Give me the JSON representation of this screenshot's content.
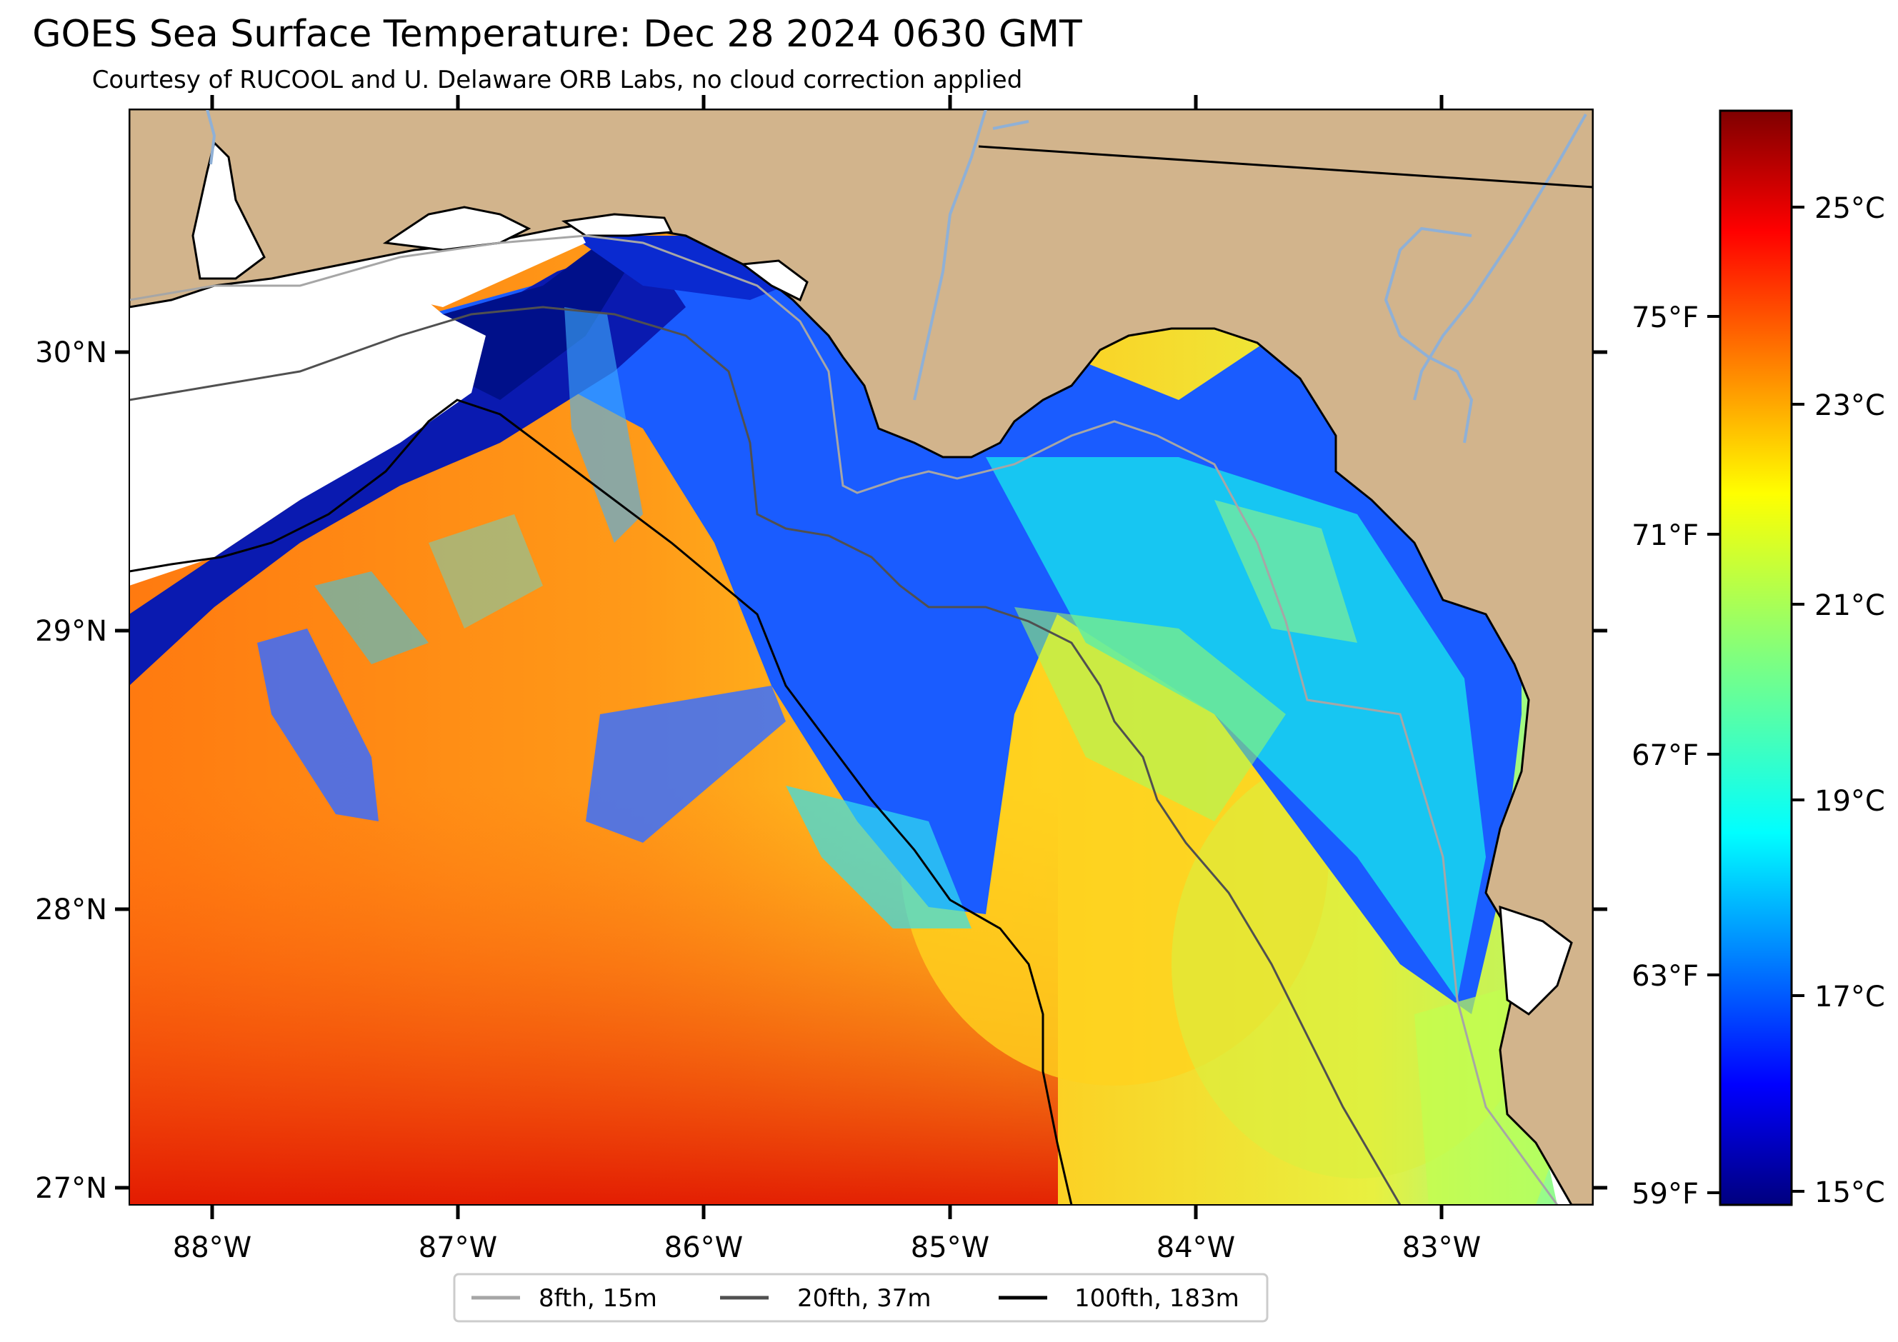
{
  "title": "GOES Sea Surface Temperature: Dec 28 2024 0630 GMT",
  "subtitle": "Courtesy of RUCOOL and U. Delaware ORB Labs, no cloud correction applied",
  "axes": {
    "longitude_labels": [
      "88°W",
      "87°W",
      "86°W",
      "85°W",
      "84°W",
      "83°W"
    ],
    "latitude_labels": [
      "27°N",
      "28°N",
      "29°N",
      "30°N"
    ]
  },
  "colorbar": {
    "celsius_labels": [
      "15°C",
      "17°C",
      "19°C",
      "21°C",
      "23°C",
      "25°C"
    ],
    "fahrenheit_labels": [
      "59°F",
      "63°F",
      "67°F",
      "71°F",
      "75°F"
    ],
    "range_c": [
      14.8,
      26.0
    ],
    "colormap": "jet"
  },
  "legend": {
    "items": [
      {
        "label": "8fth, 15m",
        "color": "#a6a6a6"
      },
      {
        "label": "20fth, 37m",
        "color": "#505050"
      },
      {
        "label": "100fth, 183m",
        "color": "#000000"
      }
    ]
  },
  "colors": {
    "land": "#d2b48c",
    "river": "#8fb0d6",
    "no_data": "#ffffff"
  }
}
